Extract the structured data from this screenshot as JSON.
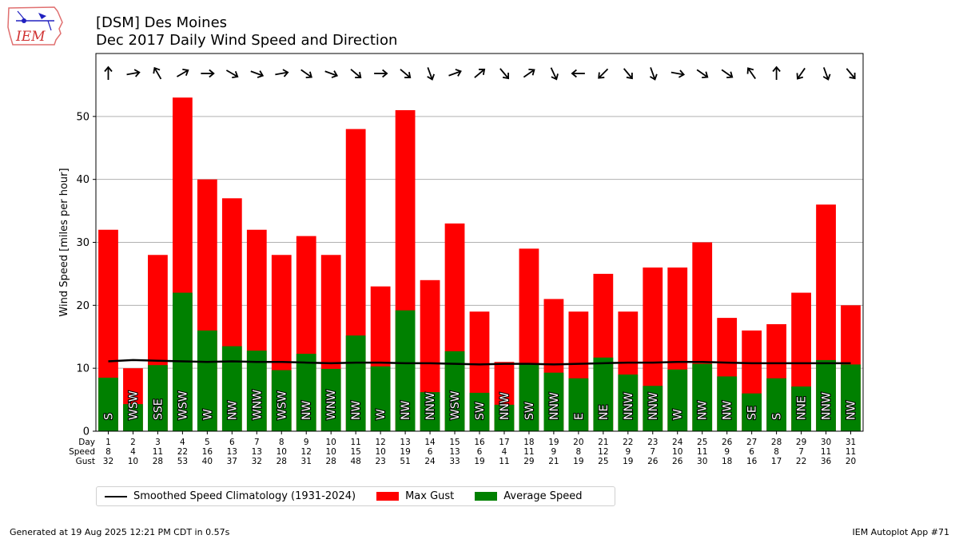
{
  "header": {
    "title": "[DSM] Des Moines",
    "subtitle": "Dec 2017 Daily Wind Speed and Direction"
  },
  "logo": {
    "text": "IEM",
    "icon": "iowa-weather-station-logo"
  },
  "footer": {
    "left": "Generated at 19 Aug 2025 12:21 PM CDT in 0.57s",
    "right": "IEM Autoplot App #71"
  },
  "colors": {
    "gust": "#ff0000",
    "speed": "#008000",
    "climo": "#000000",
    "grid": "#b0b0b0"
  },
  "chart_data": {
    "type": "bar",
    "ylabel": "Wind Speed [miles per hour]",
    "ylim": [
      0,
      60
    ],
    "yticks": [
      0,
      10,
      20,
      30,
      40,
      50
    ],
    "grid": "horizontal",
    "row_labels": [
      "Day",
      "Speed",
      "Gust"
    ],
    "days": [
      1,
      2,
      3,
      4,
      5,
      6,
      7,
      8,
      9,
      10,
      11,
      12,
      13,
      14,
      15,
      16,
      17,
      18,
      19,
      20,
      21,
      22,
      23,
      24,
      25,
      26,
      27,
      28,
      29,
      30,
      31
    ],
    "series": [
      {
        "name": "Max Gust",
        "values": [
          32,
          10,
          28,
          53,
          40,
          37,
          32,
          28,
          31,
          28,
          48,
          23,
          51,
          24,
          33,
          19,
          11,
          29,
          21,
          19,
          25,
          19,
          26,
          26,
          30,
          18,
          16,
          17,
          22,
          36,
          20
        ]
      },
      {
        "name": "Average Speed",
        "values": [
          8.5,
          4.3,
          10.5,
          22.0,
          16.0,
          13.5,
          12.8,
          9.7,
          12.3,
          9.9,
          15.2,
          10.3,
          19.2,
          6.2,
          12.7,
          6.1,
          4.2,
          10.6,
          9.3,
          8.4,
          11.7,
          9.0,
          7.2,
          9.8,
          10.7,
          8.7,
          6.0,
          8.4,
          7.1,
          11.3,
          10.6
        ]
      }
    ],
    "speed_labels": [
      8,
      4,
      11,
      22,
      16,
      13,
      13,
      10,
      12,
      10,
      15,
      10,
      19,
      6,
      13,
      6,
      4,
      11,
      9,
      8,
      12,
      9,
      7,
      10,
      11,
      9,
      6,
      8,
      7,
      11,
      11
    ],
    "direction_labels": [
      "S",
      "WSW",
      "SSE",
      "WSW",
      "W",
      "NW",
      "WNW",
      "WSW",
      "NW",
      "WNW",
      "NW",
      "W",
      "NW",
      "NNW",
      "WSW",
      "SW",
      "NNW",
      "SW",
      "NNW",
      "E",
      "NE",
      "NNW",
      "NNW",
      "W",
      "NW",
      "NW",
      "SE",
      "S",
      "NNE",
      "NNW",
      "NW"
    ],
    "arrow_bearings": [
      0,
      80,
      -30,
      60,
      90,
      120,
      110,
      80,
      125,
      110,
      130,
      90,
      130,
      160,
      70,
      50,
      140,
      55,
      155,
      -90,
      -135,
      140,
      160,
      100,
      125,
      125,
      -35,
      0,
      -145,
      160,
      140
    ],
    "climatology": {
      "name": "Smoothed Speed Climatology (1931-2024)",
      "values": [
        11.1,
        11.3,
        11.2,
        11.1,
        11.0,
        11.1,
        11.0,
        11.0,
        10.9,
        10.8,
        10.9,
        10.9,
        10.8,
        10.8,
        10.7,
        10.6,
        10.7,
        10.7,
        10.6,
        10.7,
        10.8,
        10.9,
        10.9,
        11.0,
        11.0,
        10.9,
        10.8,
        10.8,
        10.8,
        10.8,
        10.8
      ]
    },
    "legend_position": "below"
  }
}
